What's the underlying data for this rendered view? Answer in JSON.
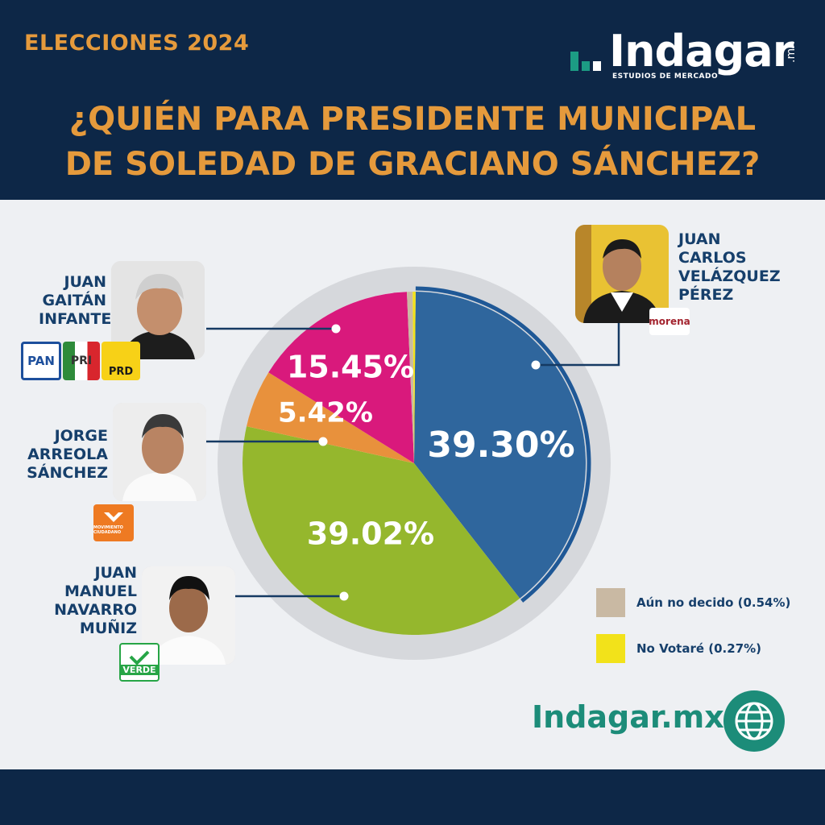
{
  "header": {
    "tag": "ELECCIONES 2024",
    "title_line1": "¿QUIÉN PARA PRESIDENTE MUNICIPAL",
    "title_line2": "DE SOLEDAD DE GRACIANO SÁNCHEZ?"
  },
  "brand": {
    "logo_word": "Indagar",
    "logo_tld": ".mx",
    "logo_sub": "ESTUDIOS DE MERCADO",
    "url": "Indagar.mx"
  },
  "candidates": [
    {
      "name_lines": [
        "JUAN",
        "CARLOS",
        "VELÁZQUEZ",
        "PÉREZ"
      ],
      "party": "morena"
    },
    {
      "name_lines": [
        "JUAN",
        "GAITÁN",
        "INFANTE"
      ],
      "parties": [
        "PAN",
        "PRI",
        "PRD"
      ]
    },
    {
      "name_lines": [
        "JORGE",
        "ARREOLA",
        "SÁNCHEZ"
      ],
      "party": "MOVIMIENTO CIUDADANO"
    },
    {
      "name_lines": [
        "JUAN",
        "MANUEL",
        "NAVARRO",
        "MUÑIZ"
      ],
      "party": "VERDE"
    }
  ],
  "chart_data": {
    "type": "pie",
    "title": "¿QUIÉN PARA PRESIDENTE MUNICIPAL DE SOLEDAD DE GRACIANO SÁNCHEZ?",
    "slices": [
      {
        "label": "JUAN CARLOS VELÁZQUEZ PÉREZ",
        "value": 39.3,
        "display": "39.30%",
        "color": "#2f669d"
      },
      {
        "label": "JUAN MANUEL NAVARRO MUÑIZ",
        "value": 39.02,
        "display": "39.02%",
        "color": "#95b72d"
      },
      {
        "label": "JORGE ARREOLA SÁNCHEZ",
        "value": 5.42,
        "display": "5.42%",
        "color": "#e8913c"
      },
      {
        "label": "JUAN GAITÁN INFANTE",
        "value": 15.45,
        "display": "15.45%",
        "color": "#d9197c"
      },
      {
        "label": "Aún no decido",
        "value": 0.54,
        "display": "",
        "color": "#c9b9a3"
      },
      {
        "label": "No Votaré",
        "value": 0.27,
        "display": "",
        "color": "#f2e21a"
      }
    ],
    "legend": [
      {
        "label": "Aún no decido (0.54%)",
        "color": "#c9b9a3"
      },
      {
        "label": "No Votaré (0.27%)",
        "color": "#f2e21a"
      }
    ]
  }
}
